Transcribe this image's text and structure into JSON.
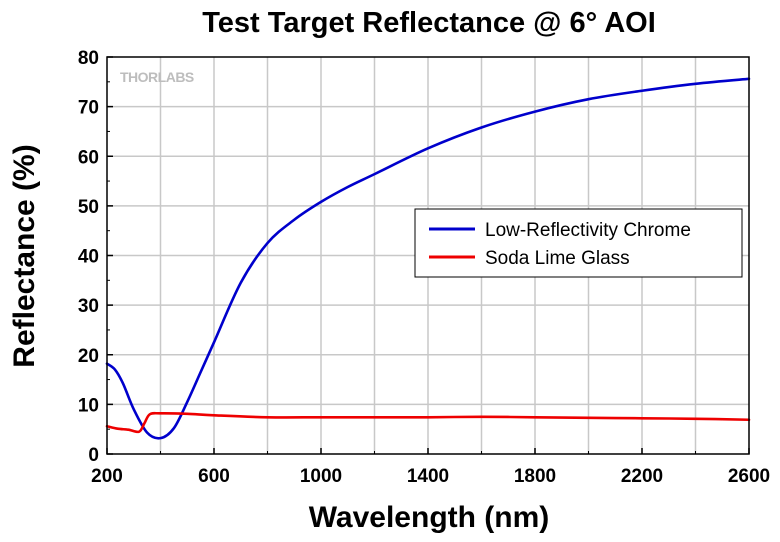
{
  "chart_data": {
    "type": "line",
    "title": "Test Target Reflectance @ 6° AOI",
    "xlabel": "Wavelength (nm)",
    "ylabel": "Reflectance (%)",
    "xlim": [
      200,
      2600
    ],
    "ylim": [
      0,
      80
    ],
    "x_ticks": [
      200,
      600,
      1000,
      1400,
      1800,
      2200,
      2600
    ],
    "y_ticks": [
      0,
      10,
      20,
      30,
      40,
      50,
      60,
      70,
      80
    ],
    "grid": true,
    "legend_position": "center-right",
    "watermark": "THORLABS",
    "series": [
      {
        "name": "Low-Reflectivity Chrome",
        "color": "#0000cc",
        "x": [
          200,
          230,
          260,
          300,
          350,
          400,
          450,
          500,
          550,
          600,
          700,
          800,
          900,
          1000,
          1100,
          1200,
          1400,
          1600,
          1800,
          2000,
          2200,
          2400,
          2600
        ],
        "y": [
          18.2,
          17.0,
          14.2,
          9.0,
          4.3,
          3.2,
          5.2,
          10.5,
          16.5,
          22.5,
          34.5,
          42.5,
          47.2,
          50.8,
          53.8,
          56.4,
          61.6,
          65.8,
          69.0,
          71.5,
          73.2,
          74.6,
          75.6
        ]
      },
      {
        "name": "Soda Lime Glass",
        "color": "#ee0000",
        "x": [
          200,
          240,
          280,
          320,
          340,
          360,
          400,
          500,
          600,
          800,
          1000,
          1200,
          1400,
          1600,
          1800,
          2000,
          2200,
          2400,
          2600
        ],
        "y": [
          5.6,
          5.1,
          4.9,
          4.5,
          6.2,
          8.0,
          8.2,
          8.1,
          7.8,
          7.4,
          7.4,
          7.4,
          7.4,
          7.5,
          7.4,
          7.3,
          7.2,
          7.1,
          6.9
        ]
      }
    ]
  }
}
